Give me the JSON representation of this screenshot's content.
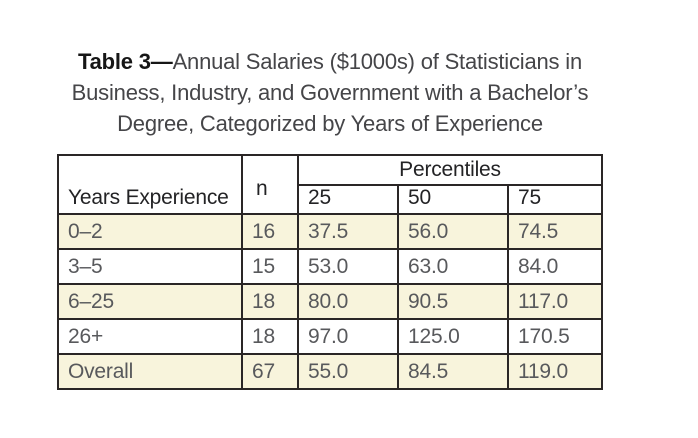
{
  "caption": {
    "line1_bold": "Table 3—",
    "line1_text": "Annual Salaries ($1000s) of Statisticians in",
    "line2": "Business, Industry, and Government with a Bachelor’s",
    "line3": "Degree, Categorized by Years of Experience"
  },
  "table": {
    "header": {
      "experience": "Years Experience",
      "n": "n",
      "percentiles_group": "Percentiles",
      "percentiles": [
        "25",
        "50",
        "75"
      ]
    },
    "rows": [
      {
        "experience": "0–2",
        "n": "16",
        "p25": "37.5",
        "p50": "56.0",
        "p75": "74.5"
      },
      {
        "experience": "3–5",
        "n": "15",
        "p25": "53.0",
        "p50": "63.0",
        "p75": "84.0"
      },
      {
        "experience": "6–25",
        "n": "18",
        "p25": "80.0",
        "p50": "90.5",
        "p75": "117.0"
      },
      {
        "experience": "26+",
        "n": "18",
        "p25": "97.0",
        "p50": "125.0",
        "p75": "170.5"
      },
      {
        "experience": "Overall",
        "n": "67",
        "p25": "55.0",
        "p50": "84.5",
        "p75": "119.0"
      }
    ]
  },
  "colors": {
    "shaded_row_bg": "#f8f4dc",
    "border": "#2a2626",
    "header_text": "#232325",
    "data_text": "#58595c",
    "caption_text": "#454548",
    "caption_bold_text": "#161616",
    "background": "#ffffff"
  },
  "chart_data": {
    "type": "table",
    "title": "Table 3—Annual Salaries ($1000s) of Statisticians in Business, Industry, and Government with a Bachelor’s Degree, Categorized by Years of Experience",
    "columns": [
      "Years Experience",
      "n",
      "25",
      "50",
      "75"
    ],
    "column_groups": [
      {
        "label": "Percentiles",
        "columns": [
          "25",
          "50",
          "75"
        ]
      }
    ],
    "rows": [
      [
        "0–2",
        16,
        37.5,
        56.0,
        74.5
      ],
      [
        "3–5",
        15,
        53.0,
        63.0,
        84.0
      ],
      [
        "6–25",
        18,
        80.0,
        90.5,
        117.0
      ],
      [
        "26+",
        18,
        97.0,
        125.0,
        170.5
      ],
      [
        "Overall",
        67,
        55.0,
        84.5,
        119.0
      ]
    ],
    "shaded_rows": [
      0,
      2,
      4
    ],
    "units": "$1000s"
  }
}
